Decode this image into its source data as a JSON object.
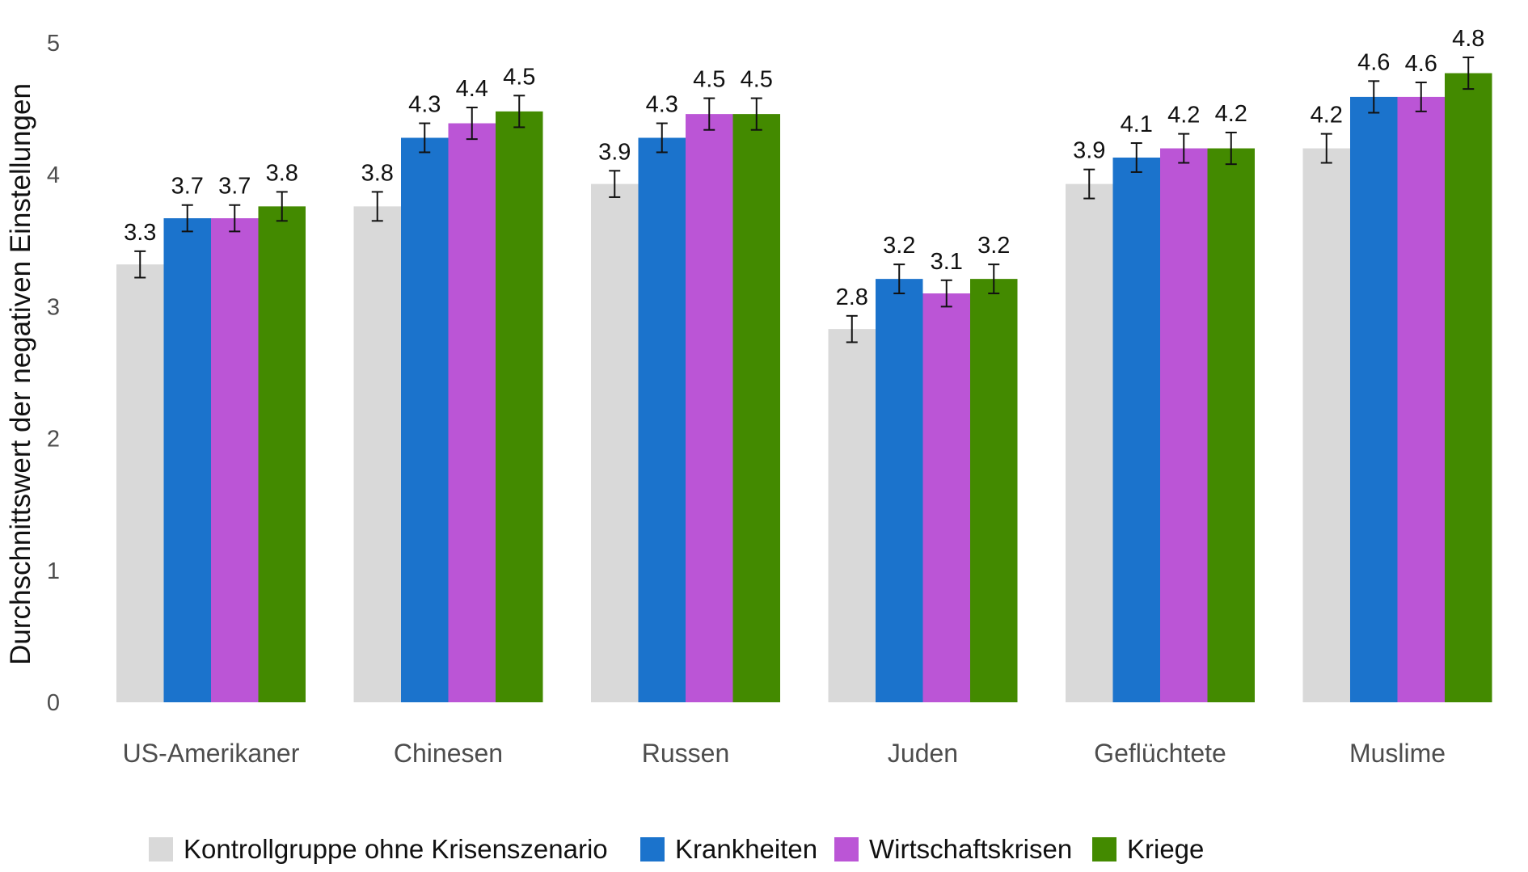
{
  "chart_data": {
    "type": "bar",
    "ylabel": "Durchschnittswert der negativen Einstellungen",
    "xlabel": "",
    "ylim": [
      0,
      5
    ],
    "yticks": [
      "0",
      "1",
      "2",
      "3",
      "4",
      "5"
    ],
    "grid": false,
    "legend_position": "bottom",
    "categories": [
      "US-Amerikaner",
      "Chinesen",
      "Russen",
      "Juden",
      "Geflüchtete",
      "Muslime"
    ],
    "series": [
      {
        "name": "Kontrollgruppe ohne Krisenszenario",
        "color": "#d9d9d9",
        "values": [
          3.32,
          3.76,
          3.93,
          2.83,
          3.93,
          4.2
        ],
        "labels": [
          "3.3",
          "3.8",
          "3.9",
          "2.8",
          "3.9",
          "4.2"
        ],
        "err": [
          0.1,
          0.11,
          0.1,
          0.1,
          0.11,
          0.11
        ]
      },
      {
        "name": "Krankheiten",
        "color": "#1b73cc",
        "values": [
          3.67,
          4.28,
          4.28,
          3.21,
          4.13,
          4.59
        ],
        "labels": [
          "3.7",
          "4.3",
          "4.3",
          "3.2",
          "4.1",
          "4.6"
        ],
        "err": [
          0.1,
          0.11,
          0.11,
          0.11,
          0.11,
          0.12
        ]
      },
      {
        "name": "Wirtschaftskrisen",
        "color": "#bb55d6",
        "values": [
          3.67,
          4.39,
          4.46,
          3.1,
          4.2,
          4.59
        ],
        "labels": [
          "3.7",
          "4.4",
          "4.5",
          "3.1",
          "4.2",
          "4.6"
        ],
        "err": [
          0.1,
          0.12,
          0.12,
          0.1,
          0.11,
          0.11
        ]
      },
      {
        "name": "Kriege",
        "color": "#438a00",
        "values": [
          3.76,
          4.48,
          4.46,
          3.21,
          4.2,
          4.77
        ],
        "labels": [
          "3.8",
          "4.5",
          "4.5",
          "3.2",
          "4.2",
          "4.8"
        ],
        "err": [
          0.11,
          0.12,
          0.12,
          0.11,
          0.12,
          0.12
        ]
      }
    ]
  }
}
